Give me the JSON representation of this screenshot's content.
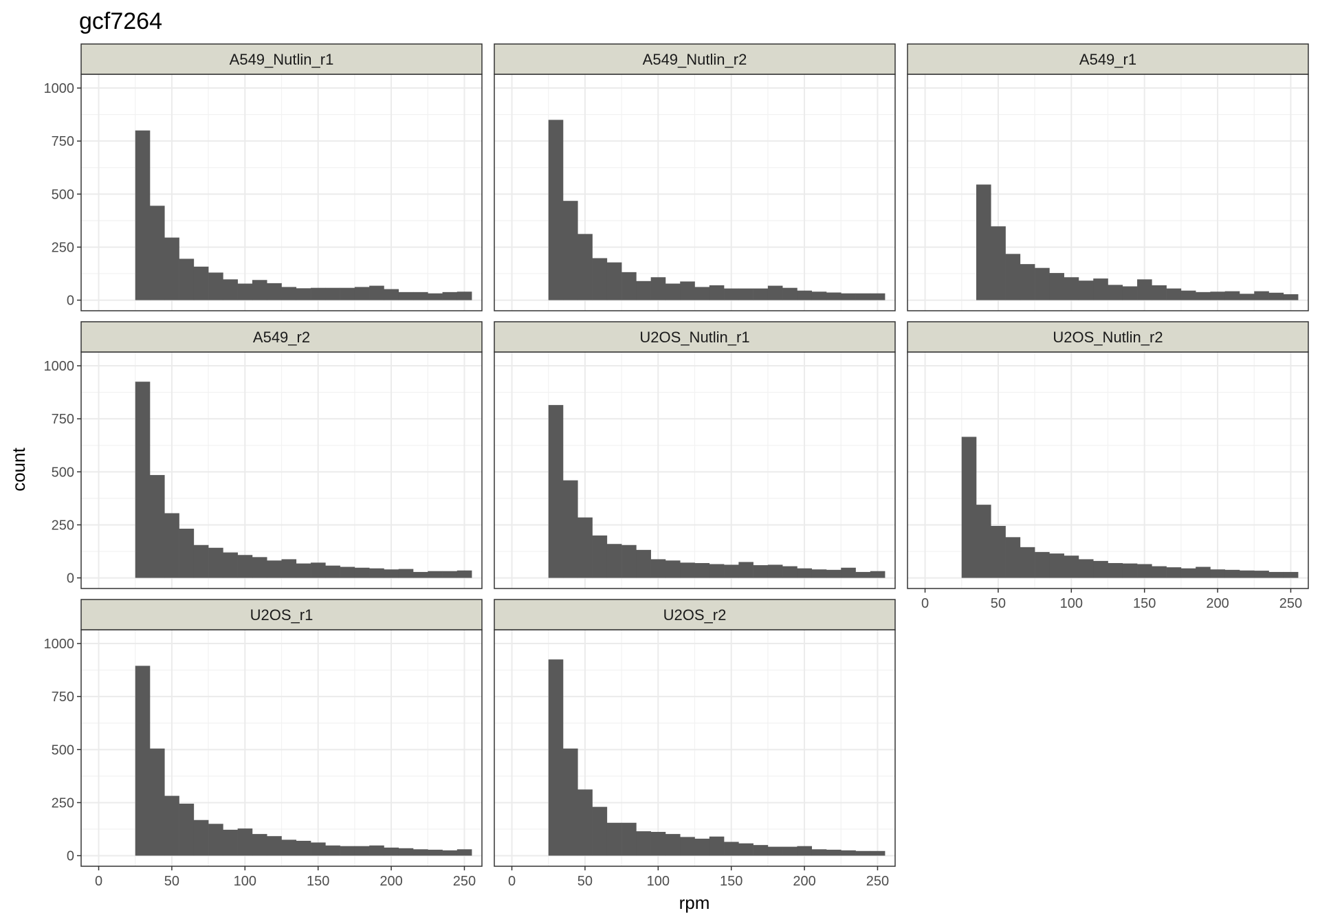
{
  "chart_data": {
    "type": "bar",
    "title": "gcf7264",
    "xlabel": "rpm",
    "ylabel": "count",
    "xlim": [
      -12,
      262
    ],
    "ylim": [
      -50,
      1065
    ],
    "xticks": [
      0,
      50,
      100,
      150,
      200,
      250
    ],
    "yticks": [
      0,
      250,
      500,
      750,
      1000
    ],
    "bin_width": 10,
    "bar_color": "#595959",
    "strip_color": "#d9d9cc",
    "grid": true,
    "panels": [
      {
        "label": "A549_Nutlin_r1",
        "first_bin_start": 25,
        "values": [
          800,
          445,
          295,
          195,
          158,
          130,
          98,
          78,
          95,
          80,
          62,
          56,
          58,
          58,
          58,
          62,
          68,
          52,
          38,
          38,
          32,
          38,
          40
        ]
      },
      {
        "label": "A549_Nutlin_r2",
        "first_bin_start": 25,
        "values": [
          850,
          468,
          312,
          198,
          178,
          132,
          90,
          108,
          78,
          88,
          62,
          70,
          55,
          55,
          55,
          68,
          58,
          45,
          40,
          36,
          32,
          32,
          32
        ]
      },
      {
        "label": "A549_r1",
        "first_bin_start": 35,
        "values": [
          545,
          348,
          218,
          170,
          152,
          128,
          108,
          92,
          102,
          72,
          65,
          98,
          70,
          55,
          45,
          38,
          40,
          42,
          30,
          42,
          35,
          28
        ]
      },
      {
        "label": "A549_r2",
        "first_bin_start": 25,
        "values": [
          925,
          485,
          305,
          232,
          155,
          142,
          120,
          108,
          98,
          82,
          88,
          68,
          72,
          58,
          52,
          48,
          45,
          40,
          42,
          28,
          32,
          32,
          35
        ]
      },
      {
        "label": "U2OS_Nutlin_r1",
        "first_bin_start": 25,
        "values": [
          815,
          460,
          285,
          200,
          160,
          155,
          132,
          88,
          82,
          72,
          70,
          65,
          62,
          75,
          60,
          62,
          55,
          45,
          40,
          38,
          48,
          28,
          32
        ]
      },
      {
        "label": "U2OS_Nutlin_r2",
        "first_bin_start": 25,
        "values": [
          665,
          345,
          245,
          192,
          145,
          122,
          115,
          105,
          88,
          80,
          70,
          68,
          65,
          55,
          50,
          45,
          52,
          40,
          38,
          35,
          34,
          28,
          28
        ]
      },
      {
        "label": "U2OS_r1",
        "first_bin_start": 25,
        "values": [
          895,
          505,
          282,
          245,
          168,
          150,
          122,
          128,
          102,
          92,
          75,
          70,
          62,
          48,
          45,
          45,
          48,
          38,
          35,
          30,
          28,
          25,
          30
        ]
      },
      {
        "label": "U2OS_r2",
        "first_bin_start": 25,
        "values": [
          925,
          505,
          312,
          230,
          155,
          155,
          115,
          112,
          102,
          88,
          80,
          90,
          65,
          58,
          50,
          42,
          42,
          45,
          30,
          28,
          25,
          22,
          22
        ]
      }
    ]
  }
}
